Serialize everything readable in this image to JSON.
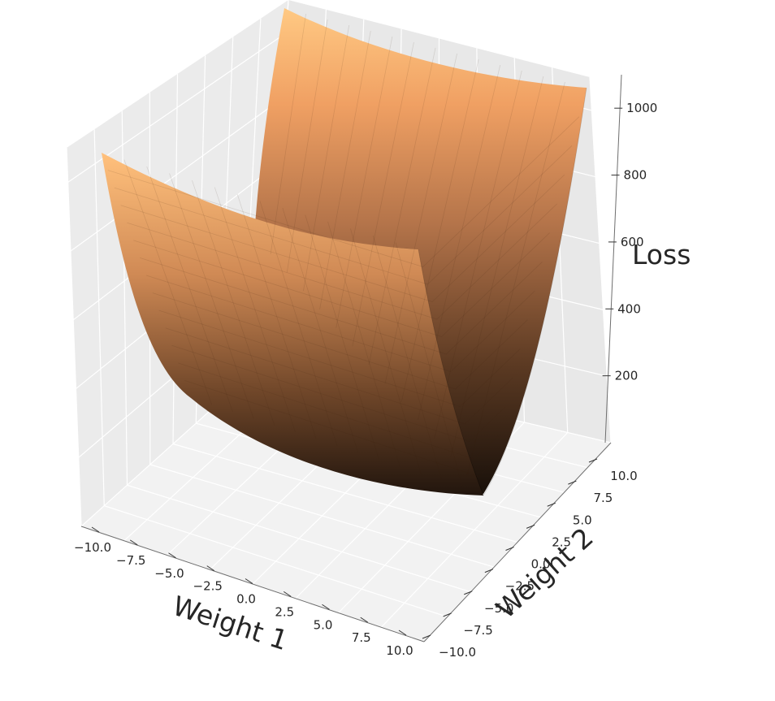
{
  "chart_data": {
    "type": "surface",
    "title": "",
    "xlabel": "Weight 1",
    "ylabel": "Weight 2",
    "zlabel": "Loss",
    "xlim": [
      -10,
      10
    ],
    "ylim": [
      -10,
      10
    ],
    "zlim": [
      0,
      1100
    ],
    "x_ticks": [
      "−10.0",
      "−7.5",
      "−5.0",
      "−2.5",
      "0.0",
      "2.5",
      "5.0",
      "7.5",
      "10.0"
    ],
    "y_ticks": [
      "−10.0",
      "−7.5",
      "−5.0",
      "−2.5",
      "0.0",
      "2.5",
      "5.0",
      "7.5",
      "10.0"
    ],
    "z_ticks": [
      "200",
      "400",
      "600",
      "800",
      "1000"
    ],
    "colormap": "copper",
    "surface_description": "bowl-shaped loss surface, minimum near Weight 1 = 10, Weight 2 = -10; maximum about 1100 at Weight 1 = -10, Weight 2 = 10",
    "grid": true,
    "colors": {
      "pane_back": "#ebebeb",
      "pane_floor": "#f2f2f2",
      "grid_line": "#ffffff",
      "surface_dark": "#1c120b",
      "surface_light": "#ffc983"
    }
  }
}
